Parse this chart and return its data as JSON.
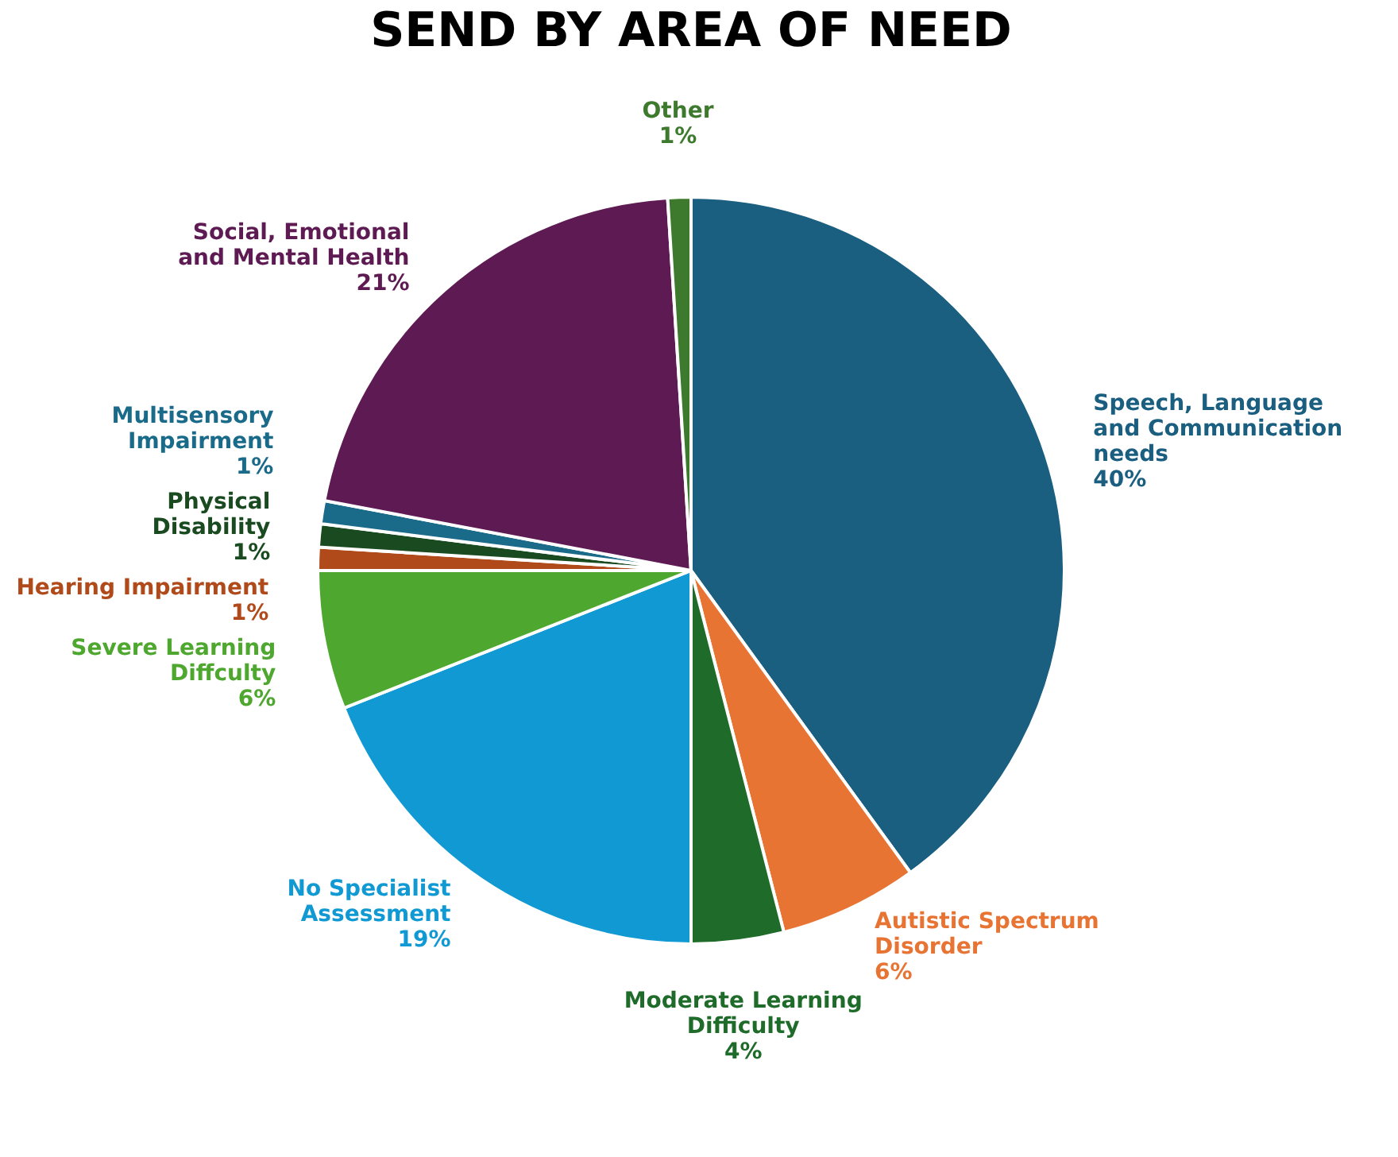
{
  "chart_data": {
    "type": "pie",
    "title": "SEND BY AREA OF NEED",
    "categories": [
      "Speech, Language and Communication needs",
      "Autistic Spectrum Disorder",
      "Moderate Learning Difficulty",
      "No Specialist Assessment",
      "Severe Learning Diffculty",
      "Hearing Impairment",
      "Physical Disability",
      "Multisensory Impairment",
      "Social, Emotional and Mental Health",
      "Other"
    ],
    "values": [
      40,
      6,
      4,
      19,
      6,
      1,
      1,
      1,
      21,
      1
    ],
    "value_labels": [
      "40%",
      "6%",
      "4%",
      "19%",
      "6%",
      "1%",
      "1%",
      "1%",
      "21%",
      "1%"
    ],
    "colors": [
      "#1a5e80",
      "#e87434",
      "#1e6b2a",
      "#1199d4",
      "#4ea72e",
      "#b04a1a",
      "#1a4a20",
      "#1a6a8a",
      "#5e1a52",
      "#3e7a2e"
    ],
    "legend": false
  }
}
